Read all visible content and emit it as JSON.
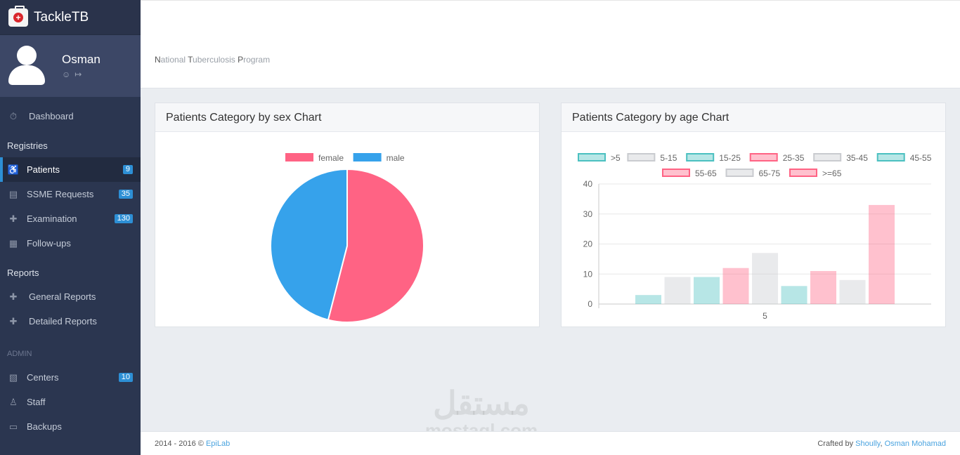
{
  "app": {
    "brand_prefix": "Tackle",
    "brand_suffix": "TB"
  },
  "profile": {
    "name": "Osman"
  },
  "sidebar": {
    "dashboard": {
      "label": "Dashboard"
    },
    "registries_title": "Registries",
    "registries": [
      {
        "label": "Patients",
        "badge": "9",
        "icon": "wheelchair-icon"
      },
      {
        "label": "SSME Requests",
        "badge": "35",
        "icon": "clipboard-icon"
      },
      {
        "label": "Examination",
        "badge": "130",
        "icon": "medkit-icon"
      },
      {
        "label": "Follow-ups",
        "badge": "",
        "icon": "calendar-icon"
      }
    ],
    "reports_title": "Reports",
    "reports": [
      {
        "label": "General Reports",
        "icon": "medkit-icon"
      },
      {
        "label": "Detailed Reports",
        "icon": "medkit-icon"
      }
    ],
    "admin_title": "ADMIN",
    "admin": [
      {
        "label": "Centers",
        "badge": "10",
        "icon": "building-icon"
      },
      {
        "label": "Staff",
        "badge": "",
        "icon": "users-icon"
      },
      {
        "label": "Backups",
        "badge": "",
        "icon": "drive-icon"
      }
    ]
  },
  "header": {
    "subtitle_parts": [
      "N",
      "ational ",
      "T",
      "uberculosis ",
      "P",
      "rogram"
    ]
  },
  "panels": {
    "sex_title": "Patients Category by sex Chart",
    "age_title": "Patients Category by age Chart"
  },
  "chart_data": [
    {
      "type": "pie",
      "categories": [
        "female",
        "male"
      ],
      "values": [
        54,
        46
      ],
      "colors": [
        "#ff6384",
        "#36a2eb"
      ],
      "legend_position": "top"
    },
    {
      "type": "bar",
      "categories": [
        "5"
      ],
      "series": [
        {
          "name": ">5",
          "values": [
            3
          ],
          "color": "#4bc0c0"
        },
        {
          "name": "5-15",
          "values": [
            9
          ],
          "color": "#c9cbcf"
        },
        {
          "name": "15-25",
          "values": [
            9
          ],
          "color": "#4bc0c0"
        },
        {
          "name": "25-35",
          "values": [
            12
          ],
          "color": "#ff6384"
        },
        {
          "name": "35-45",
          "values": [
            17
          ],
          "color": "#c9cbcf"
        },
        {
          "name": "45-55",
          "values": [
            6
          ],
          "color": "#4bc0c0"
        },
        {
          "name": "55-65",
          "values": [
            11
          ],
          "color": "#ff6384"
        },
        {
          "name": "65-75",
          "values": [
            8
          ],
          "color": "#c9cbcf"
        },
        {
          "name": ">=65",
          "values": [
            33
          ],
          "color": "#ff6384"
        }
      ],
      "ylim": [
        0,
        40
      ],
      "yticks": [
        0,
        10,
        20,
        30,
        40
      ],
      "grid": true,
      "legend_position": "top"
    }
  ],
  "footer": {
    "left_text": "2014 - 2016 © ",
    "left_link": "EpiLab",
    "right_text": "Crafted by ",
    "right_link1": "Shoully",
    "right_sep": ", ",
    "right_link2": "Osman Mohamad"
  },
  "watermark": {
    "arabic": "مستقل",
    "latin": "mostaql.com"
  }
}
